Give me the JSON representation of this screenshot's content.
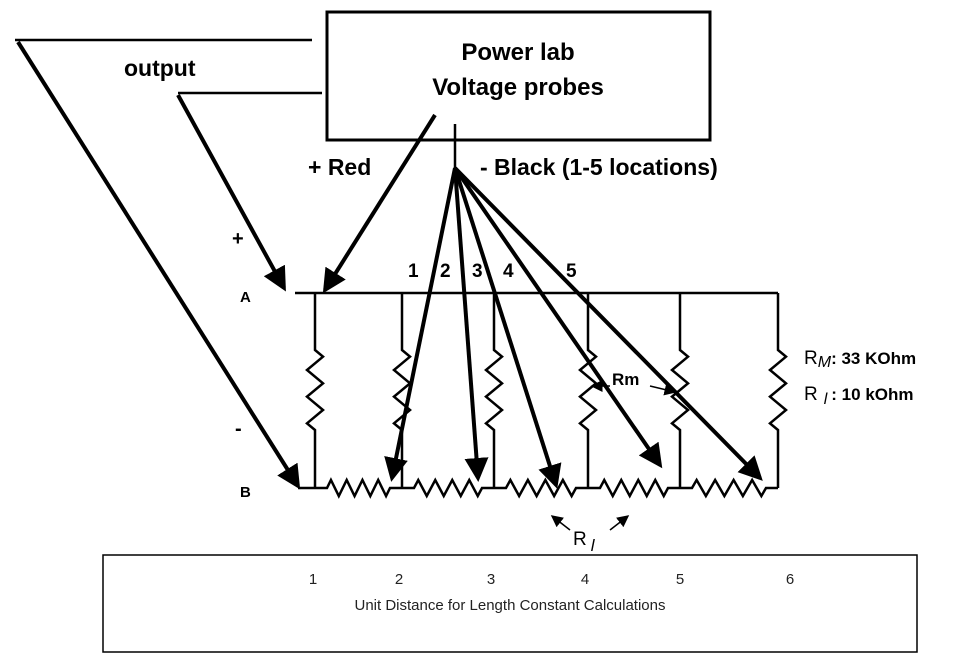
{
  "box": {
    "title": "Power lab",
    "subtitle": "Voltage probes"
  },
  "labels": {
    "output": "output",
    "red": "+ Red",
    "black": "- Black (1-5 locations)",
    "plus": "+",
    "minus": "-",
    "a": "A",
    "b": "B",
    "rm": "Rm"
  },
  "probes": [
    "1",
    "2",
    "3",
    "4",
    "5"
  ],
  "legend": [
    {
      "symbol": "R",
      "sub": "M",
      "text": ": 33 KOhm"
    },
    {
      "symbol": "R",
      "sub": "l",
      "text": ": 10 kOhm"
    }
  ],
  "ri": {
    "symbol": "R",
    "sub": "l"
  },
  "axis": {
    "ticks": [
      "1",
      "2",
      "3",
      "4",
      "5",
      "6"
    ],
    "label": "Unit Distance for Length Constant Calculations"
  }
}
